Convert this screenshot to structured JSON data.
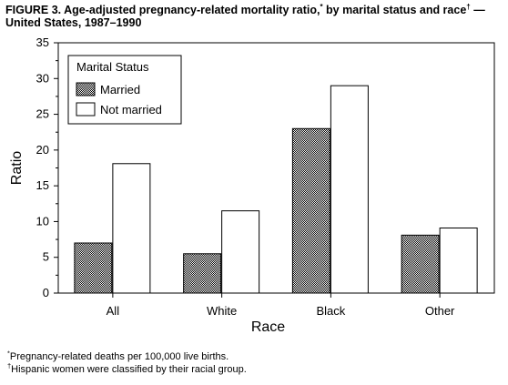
{
  "figure": {
    "title_part1": "FIGURE 3. Age-adjusted pregnancy-related mortality ratio,",
    "title_mark1": "*",
    "title_part2": " by marital status and race",
    "title_mark2": "†",
    "title_part3": " — United States, 1987–1990"
  },
  "footnotes": [
    {
      "mark": "*",
      "text": "Pregnancy-related deaths per 100,000 live births."
    },
    {
      "mark": "†",
      "text": "Hispanic women were classified by their racial group."
    }
  ],
  "colors": {
    "married_fill": "#555555",
    "not_married_fill": "#ffffff",
    "stroke": "#000000"
  },
  "chart_data": {
    "type": "bar",
    "title": "Age-adjusted pregnancy-related mortality ratio, by marital status and race — United States, 1987–1990",
    "xlabel": "Race",
    "ylabel": "Ratio",
    "categories": [
      "All",
      "White",
      "Black",
      "Other"
    ],
    "series": [
      {
        "name": "Married",
        "values": [
          7,
          5.5,
          23,
          8.1
        ]
      },
      {
        "name": "Not married",
        "values": [
          18.1,
          11.5,
          29,
          9.1
        ]
      }
    ],
    "ylim": [
      0,
      35
    ],
    "yticks": [
      0,
      5,
      10,
      15,
      20,
      25,
      30,
      35
    ],
    "legend_title": "Marital Status",
    "legend_position": "top-left",
    "grid": false
  }
}
